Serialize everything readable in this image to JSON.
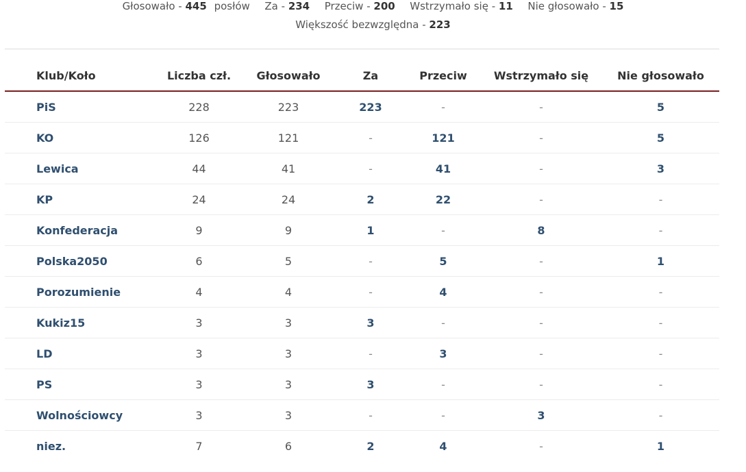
{
  "summary": {
    "voted_label": "Głosowało -",
    "voted_value": "445",
    "voted_suffix": "posłów",
    "for_label": "Za -",
    "for_value": "234",
    "against_label": "Przeciw -",
    "against_value": "200",
    "abstained_label": "Wstrzymało się -",
    "abstained_value": "11",
    "not_voted_label": "Nie głosowało -",
    "not_voted_value": "15",
    "majority_label": "Większość bezwzględna -",
    "majority_value": "223"
  },
  "table": {
    "headers": {
      "club": "Klub/Koło",
      "members": "Liczba czł.",
      "voted": "Głosowało",
      "for": "Za",
      "against": "Przeciw",
      "abstained": "Wstrzymało się",
      "not_voted": "Nie głosowało"
    },
    "rows": [
      {
        "club": "PiS",
        "members": "228",
        "voted": "223",
        "for": "223",
        "against": "-",
        "abstained": "-",
        "not_voted": "5"
      },
      {
        "club": "KO",
        "members": "126",
        "voted": "121",
        "for": "-",
        "against": "121",
        "abstained": "-",
        "not_voted": "5"
      },
      {
        "club": "Lewica",
        "members": "44",
        "voted": "41",
        "for": "-",
        "against": "41",
        "abstained": "-",
        "not_voted": "3"
      },
      {
        "club": "KP",
        "members": "24",
        "voted": "24",
        "for": "2",
        "against": "22",
        "abstained": "-",
        "not_voted": "-"
      },
      {
        "club": "Konfederacja",
        "members": "9",
        "voted": "9",
        "for": "1",
        "against": "-",
        "abstained": "8",
        "not_voted": "-"
      },
      {
        "club": "Polska2050",
        "members": "6",
        "voted": "5",
        "for": "-",
        "against": "5",
        "abstained": "-",
        "not_voted": "1"
      },
      {
        "club": "Porozumienie",
        "members": "4",
        "voted": "4",
        "for": "-",
        "against": "4",
        "abstained": "-",
        "not_voted": "-"
      },
      {
        "club": "Kukiz15",
        "members": "3",
        "voted": "3",
        "for": "3",
        "against": "-",
        "abstained": "-",
        "not_voted": "-"
      },
      {
        "club": "LD",
        "members": "3",
        "voted": "3",
        "for": "-",
        "against": "3",
        "abstained": "-",
        "not_voted": "-"
      },
      {
        "club": "PS",
        "members": "3",
        "voted": "3",
        "for": "3",
        "against": "-",
        "abstained": "-",
        "not_voted": "-"
      },
      {
        "club": "Wolnościowcy",
        "members": "3",
        "voted": "3",
        "for": "-",
        "against": "-",
        "abstained": "3",
        "not_voted": "-"
      },
      {
        "club": "niez.",
        "members": "7",
        "voted": "6",
        "for": "2",
        "against": "4",
        "abstained": "-",
        "not_voted": "1"
      }
    ]
  },
  "colors": {
    "header_rule": "#7a1f1f",
    "club_link": "#2f4f6f",
    "text": "#555555"
  }
}
